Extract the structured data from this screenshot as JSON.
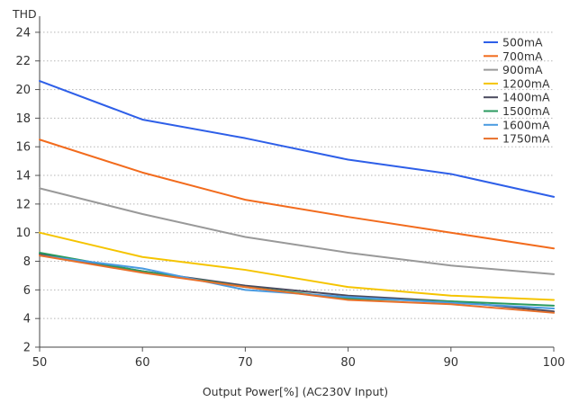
{
  "chart_data": {
    "type": "line",
    "title": "",
    "ylabel": "THD",
    "xlabel": "Output Power[%] (AC230V Input)",
    "x": [
      50,
      60,
      70,
      80,
      90,
      100
    ],
    "xlim": [
      50,
      100
    ],
    "ylim": [
      2,
      25
    ],
    "xticks": [
      50,
      60,
      70,
      80,
      90,
      100
    ],
    "yticks": [
      2,
      4,
      6,
      8,
      10,
      12,
      14,
      16,
      18,
      20,
      22,
      24
    ],
    "grid": "horizontal dotted",
    "legend_position": "top-right",
    "series": [
      {
        "name": "500mA",
        "color": "#2e5fe8",
        "values": [
          20.6,
          17.9,
          16.6,
          15.1,
          14.1,
          12.5
        ]
      },
      {
        "name": "700mA",
        "color": "#f26b1d",
        "values": [
          16.5,
          14.2,
          12.3,
          11.1,
          10.0,
          8.9
        ]
      },
      {
        "name": "900mA",
        "color": "#999999",
        "values": [
          13.1,
          11.3,
          9.7,
          8.6,
          7.7,
          7.1
        ]
      },
      {
        "name": "1200mA",
        "color": "#f5c400",
        "values": [
          10.0,
          8.3,
          7.4,
          6.2,
          5.6,
          5.3
        ]
      },
      {
        "name": "1400mA",
        "color": "#4a4a5e",
        "values": [
          8.5,
          7.3,
          6.3,
          5.6,
          5.2,
          4.5
        ]
      },
      {
        "name": "1500mA",
        "color": "#2a9a5f",
        "values": [
          8.6,
          7.3,
          6.2,
          5.4,
          5.2,
          4.9
        ]
      },
      {
        "name": "1600mA",
        "color": "#4a9be0",
        "values": [
          8.4,
          7.5,
          6.0,
          5.5,
          5.1,
          4.7
        ]
      },
      {
        "name": "1750mA",
        "color": "#e8702a",
        "values": [
          8.4,
          7.2,
          6.2,
          5.3,
          5.0,
          4.4
        ]
      }
    ]
  }
}
